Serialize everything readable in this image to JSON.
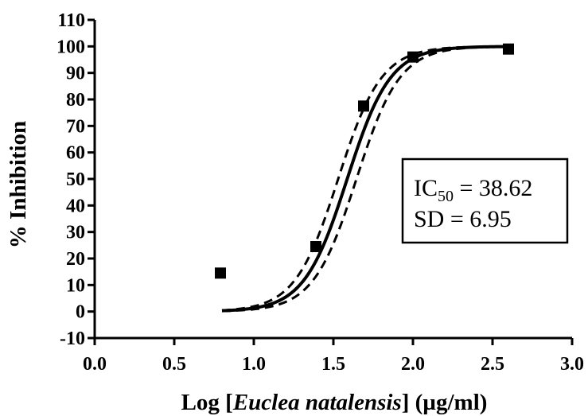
{
  "chart_data": {
    "type": "scatter",
    "xlabel": {
      "prefix": "Log [",
      "italic": "Euclea natalensis",
      "suffix": "] (µg/ml)"
    },
    "ylabel": "% Inhibition",
    "xlim": [
      0.0,
      3.0
    ],
    "ylim": [
      -10,
      110
    ],
    "x_ticks": [
      0.0,
      0.5,
      1.0,
      1.5,
      2.0,
      2.5,
      3.0
    ],
    "x_tick_labels": [
      "0.0",
      "0.5",
      "1.0",
      "1.5",
      "2.0",
      "2.5",
      "3.0"
    ],
    "y_ticks": [
      -10,
      0,
      10,
      20,
      30,
      40,
      50,
      60,
      70,
      80,
      90,
      100,
      110
    ],
    "y_tick_labels": [
      "-10",
      "0",
      "10",
      "20",
      "30",
      "40",
      "50",
      "60",
      "70",
      "80",
      "90",
      "100",
      "110"
    ],
    "points": [
      {
        "x": 0.79,
        "y": 14.5
      },
      {
        "x": 1.39,
        "y": 24.5
      },
      {
        "x": 1.69,
        "y": 77.5
      },
      {
        "x": 2.0,
        "y": 96.0
      },
      {
        "x": 2.6,
        "y": 99.0
      }
    ],
    "fit": {
      "model": "sigmoid",
      "x_range": [
        0.8,
        2.6
      ],
      "bottom": 0,
      "top": 100,
      "logIC50": 1.5868,
      "hill": 3.2,
      "ci_band": {
        "style": "dashed",
        "logIC50_low": 1.53,
        "logIC50_high": 1.645
      }
    },
    "annotation": {
      "ic50_prefix": "IC",
      "ic50_subscript": "50",
      "ic50_value": " = 38.62",
      "sd_line": "SD = 6.95"
    },
    "grid": false,
    "legend": "none"
  }
}
